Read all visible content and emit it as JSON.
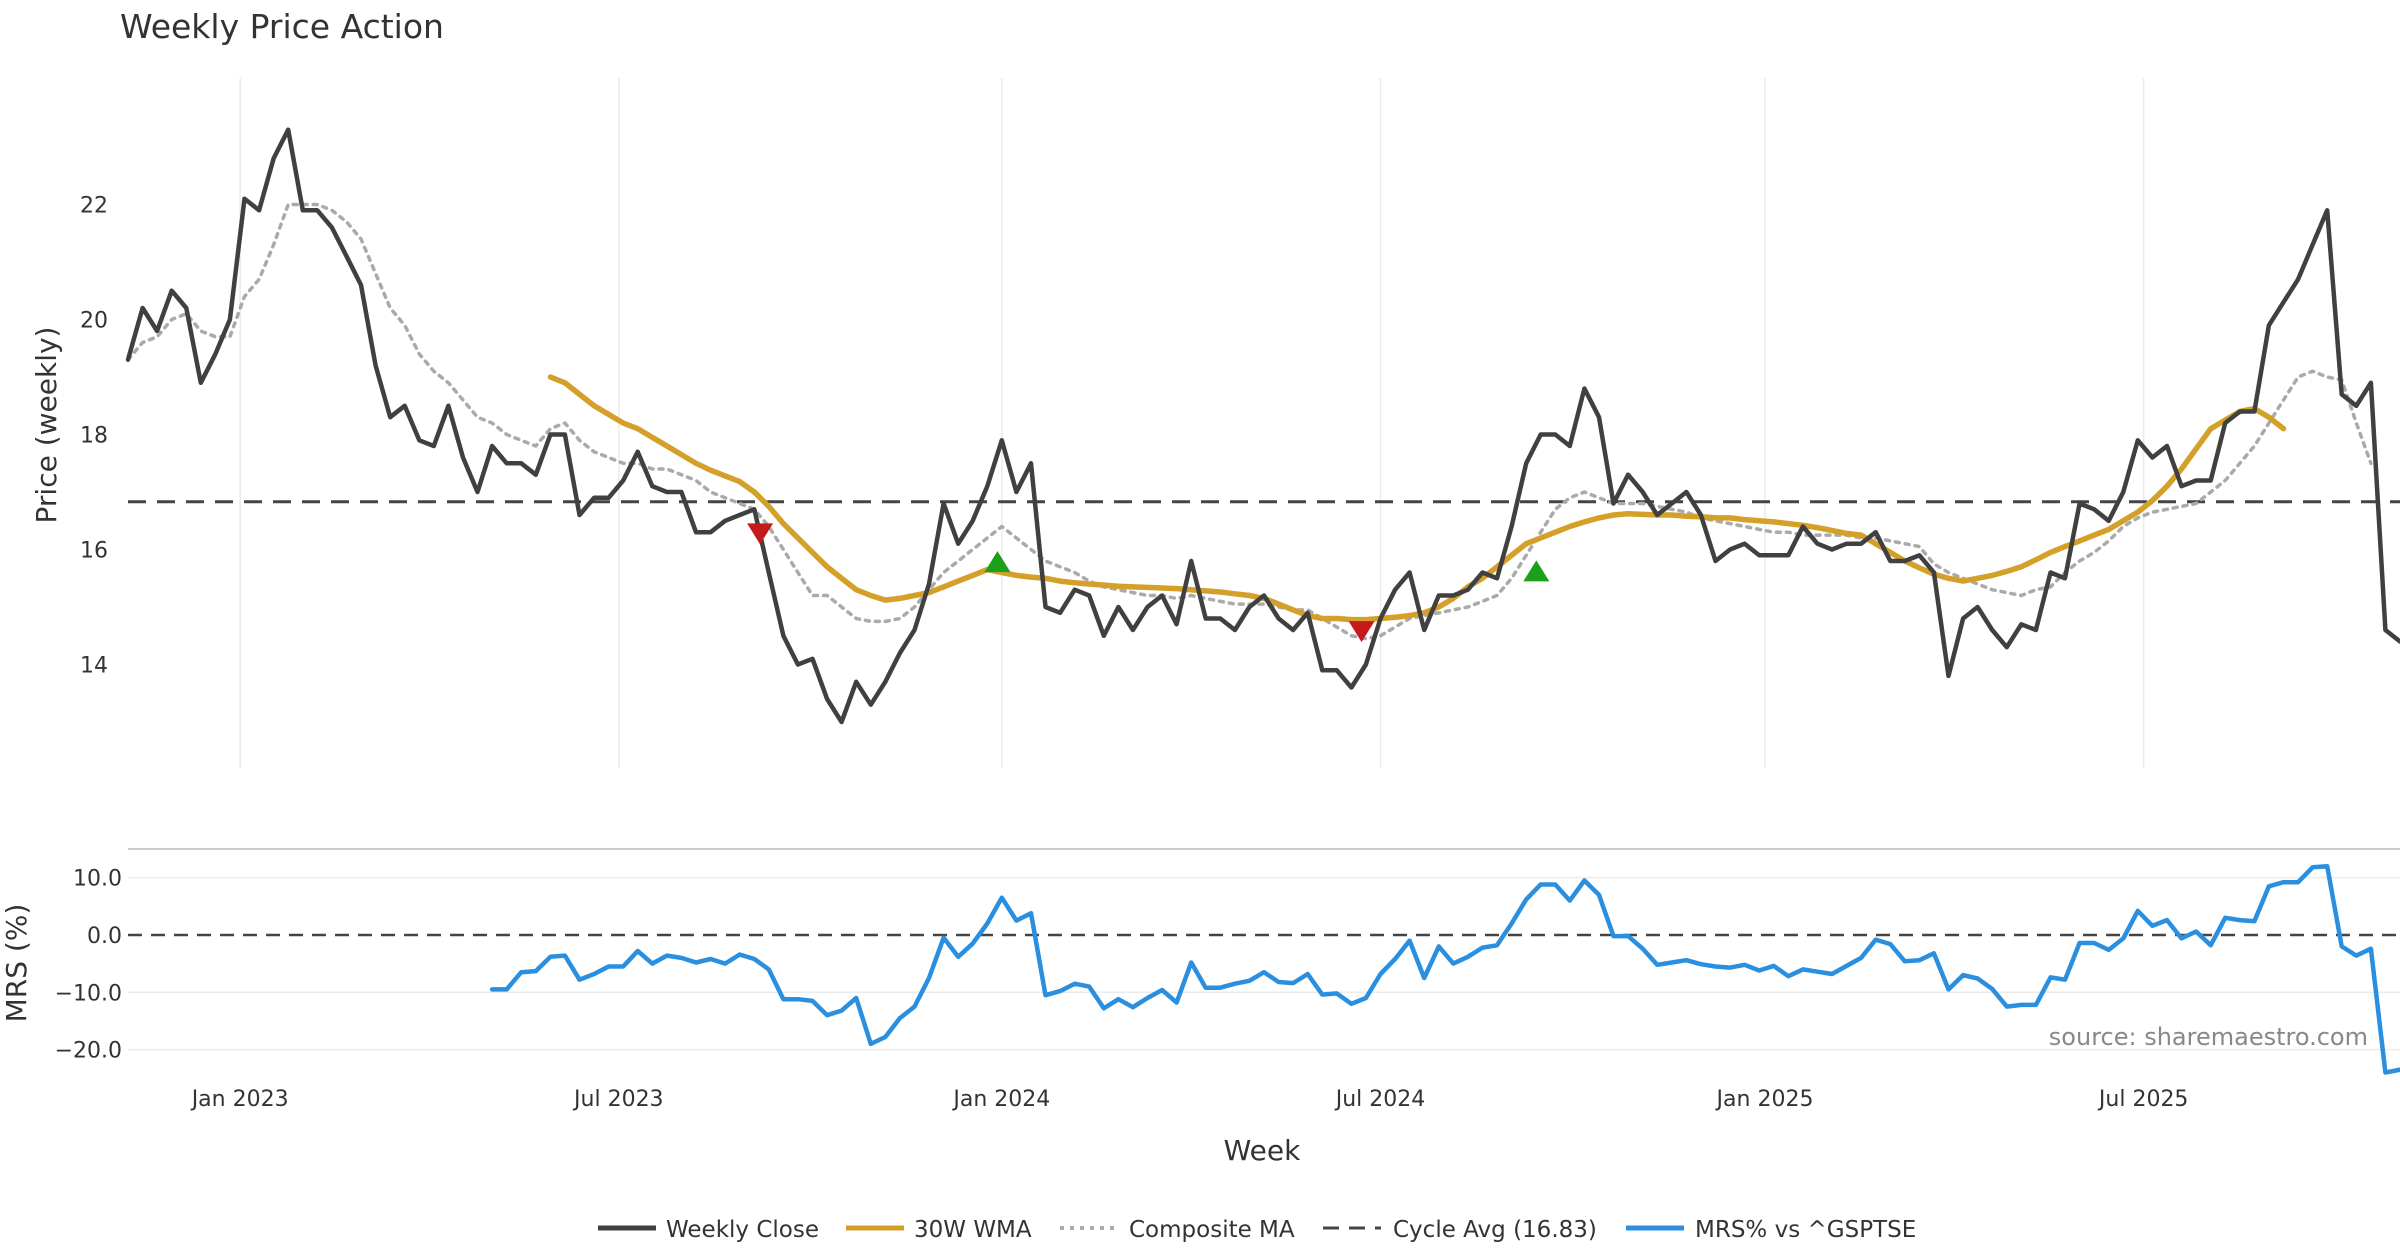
{
  "chart_data": {
    "type": "line",
    "title": "Weekly Price Action",
    "xlabel": "Week",
    "colors": {
      "close": "#404040",
      "wma": "#d4a02a",
      "composite": "#aaaaaa",
      "cycle": "#444444",
      "mrs": "#2b8fe0",
      "up_marker": "#1aa01a",
      "down_marker": "#c41a1a",
      "grid": "#ebebeb"
    },
    "x_ticks": [
      "Jan 2023",
      "Jul 2023",
      "Jan 2024",
      "Jul 2024",
      "Jan 2025",
      "Jul 2025"
    ],
    "x_tick_weeks": [
      11.7,
      37.7,
      64,
      90,
      116.4,
      142.4
    ],
    "x_range": [
      4,
      160
    ],
    "price_panel": {
      "ylabel": "Price (weekly)",
      "ylim": [
        12.2,
        24.2
      ],
      "y_ticks": [
        "14",
        "16",
        "18",
        "20",
        "22"
      ],
      "y_tick_values": [
        14,
        16,
        18,
        20,
        22
      ],
      "series": [
        {
          "name": "Weekly Close",
          "start_week": 4,
          "values": [
            19.3,
            20.2,
            19.8,
            20.5,
            20.2,
            18.9,
            19.4,
            20.0,
            22.1,
            21.9,
            22.8,
            23.3,
            21.9,
            21.9,
            21.6,
            21.1,
            20.6,
            19.2,
            18.3,
            18.5,
            17.9,
            17.8,
            18.5,
            17.6,
            17.0,
            17.8,
            17.5,
            17.5,
            17.3,
            18.0,
            18.0,
            16.6,
            16.9,
            16.9,
            17.2,
            17.7,
            17.1,
            17.0,
            17.0,
            16.3,
            16.3,
            16.5,
            16.6,
            16.7,
            15.6,
            14.5,
            14.0,
            14.1,
            13.4,
            13.0,
            13.7,
            13.3,
            13.7,
            14.2,
            14.6,
            15.4,
            16.8,
            16.1,
            16.5,
            17.1,
            17.9,
            17.0,
            17.5,
            15.0,
            14.9,
            15.3,
            15.2,
            14.5,
            15.0,
            14.6,
            15.0,
            15.2,
            14.7,
            15.8,
            14.8,
            14.8,
            14.6,
            15.0,
            15.2,
            14.8,
            14.6,
            14.9,
            13.9,
            13.9,
            13.6,
            14.0,
            14.8,
            15.3,
            15.6,
            14.6,
            15.2,
            15.2,
            15.3,
            15.6,
            15.5,
            16.4,
            17.5,
            18.0,
            18.0,
            17.8,
            18.8,
            18.3,
            16.8,
            17.3,
            17.0,
            16.6,
            16.8,
            17.0,
            16.6,
            15.8,
            16.0,
            16.1,
            15.9,
            15.9,
            15.9,
            16.4,
            16.1,
            16.0,
            16.1,
            16.1,
            16.3,
            15.8,
            15.8,
            15.9,
            15.6,
            13.8,
            14.8,
            15.0,
            14.6,
            14.3,
            14.7,
            14.6,
            15.6,
            15.5,
            16.8,
            16.7,
            16.5,
            17.0,
            17.9,
            17.6,
            17.8,
            17.1,
            17.2,
            17.2,
            18.2,
            18.4,
            18.4,
            19.9,
            20.3,
            20.7,
            21.3,
            21.9,
            18.7,
            18.5,
            18.9,
            14.6,
            14.4
          ]
        },
        {
          "name": "30W WMA",
          "start_week": 33,
          "values": [
            19.0,
            18.9,
            18.7,
            18.5,
            18.35,
            18.2,
            18.1,
            17.95,
            17.8,
            17.65,
            17.5,
            17.38,
            17.28,
            17.18,
            17.0,
            16.75,
            16.45,
            16.2,
            15.95,
            15.7,
            15.5,
            15.3,
            15.2,
            15.12,
            15.15,
            15.2,
            15.25,
            15.35,
            15.45,
            15.55,
            15.65,
            15.6,
            15.55,
            15.52,
            15.5,
            15.45,
            15.42,
            15.4,
            15.38,
            15.36,
            15.35,
            15.34,
            15.33,
            15.32,
            15.3,
            15.28,
            15.26,
            15.23,
            15.2,
            15.15,
            15.05,
            14.95,
            14.85,
            14.8,
            14.8,
            14.78,
            14.78,
            14.8,
            14.82,
            14.85,
            14.9,
            15.0,
            15.15,
            15.35,
            15.5,
            15.7,
            15.9,
            16.1,
            16.2,
            16.3,
            16.4,
            16.48,
            16.55,
            16.6,
            16.62,
            16.61,
            16.6,
            16.6,
            16.58,
            16.57,
            16.55,
            16.55,
            16.52,
            16.5,
            16.48,
            16.45,
            16.42,
            16.38,
            16.33,
            16.28,
            16.25,
            16.1,
            15.95,
            15.8,
            15.68,
            15.57,
            15.5,
            15.45,
            15.5,
            15.55,
            15.62,
            15.7,
            15.82,
            15.95,
            16.05,
            16.15,
            16.25,
            16.35,
            16.5,
            16.65,
            16.85,
            17.1,
            17.4,
            17.75,
            18.1,
            18.25,
            18.4,
            18.45,
            18.3,
            18.1
          ]
        },
        {
          "name": "Composite MA",
          "start_week": 4,
          "values": [
            19.3,
            19.6,
            19.7,
            20.0,
            20.1,
            19.8,
            19.7,
            19.7,
            20.4,
            20.7,
            21.3,
            22.0,
            22.0,
            22.0,
            21.9,
            21.7,
            21.4,
            20.8,
            20.2,
            19.9,
            19.4,
            19.1,
            18.9,
            18.6,
            18.3,
            18.2,
            18.0,
            17.9,
            17.8,
            18.1,
            18.2,
            17.9,
            17.7,
            17.6,
            17.5,
            17.5,
            17.4,
            17.4,
            17.3,
            17.2,
            17.0,
            16.9,
            16.8,
            16.7,
            16.4,
            16.0,
            15.6,
            15.2,
            15.2,
            15.0,
            14.8,
            14.75,
            14.75,
            14.8,
            15.0,
            15.3,
            15.6,
            15.8,
            16.0,
            16.2,
            16.4,
            16.2,
            16.0,
            15.8,
            15.7,
            15.6,
            15.45,
            15.35,
            15.3,
            15.25,
            15.2,
            15.2,
            15.15,
            15.2,
            15.15,
            15.1,
            15.05,
            15.05,
            15.05,
            15.0,
            14.95,
            14.95,
            14.8,
            14.65,
            14.5,
            14.45,
            14.5,
            14.65,
            14.8,
            14.85,
            14.9,
            14.95,
            15.0,
            15.1,
            15.2,
            15.5,
            15.9,
            16.3,
            16.7,
            16.9,
            17.0,
            16.9,
            16.8,
            16.8,
            16.8,
            16.75,
            16.7,
            16.65,
            16.55,
            16.5,
            16.45,
            16.4,
            16.35,
            16.3,
            16.3,
            16.25,
            16.25,
            16.25,
            16.25,
            16.2,
            16.2,
            16.15,
            16.1,
            16.05,
            15.75,
            15.6,
            15.5,
            15.4,
            15.3,
            15.25,
            15.2,
            15.3,
            15.35,
            15.6,
            15.8,
            15.95,
            16.15,
            16.4,
            16.55,
            16.65,
            16.7,
            16.75,
            16.8,
            17.0,
            17.2,
            17.5,
            17.8,
            18.2,
            18.6,
            19.0,
            19.1,
            19.0,
            18.95,
            18.2,
            17.5
          ]
        }
      ],
      "cycle_avg": 16.83,
      "up_markers": [
        [
          63.7,
          15.78
        ],
        [
          100.7,
          15.62
        ]
      ],
      "down_markers": [
        [
          47.4,
          16.28
        ],
        [
          88.7,
          14.58
        ]
      ]
    },
    "mrs_panel": {
      "ylabel": "MRS (%)",
      "ylim": [
        -26,
        15
      ],
      "y_ticks": [
        "10.0",
        "0.0",
        "−10.0",
        "−20.0"
      ],
      "y_tick_values": [
        10,
        0,
        -10,
        -20
      ],
      "series": [
        {
          "name": "MRS% vs ^GSPTSE",
          "start_week": 29,
          "values": [
            -9.5,
            -9.5,
            -6.5,
            -6.3,
            -3.8,
            -3.6,
            -7.8,
            -6.8,
            -5.5,
            -5.5,
            -2.8,
            -5.0,
            -3.6,
            -4.0,
            -4.8,
            -4.2,
            -5.0,
            -3.4,
            -4.2,
            -6.0,
            -11.2,
            -11.2,
            -11.5,
            -14.0,
            -13.2,
            -11.0,
            -19.0,
            -17.8,
            -14.5,
            -12.5,
            -7.5,
            -0.5,
            -3.8,
            -1.5,
            2.0,
            6.5,
            2.5,
            3.8,
            -10.5,
            -9.8,
            -8.5,
            -9.0,
            -12.8,
            -11.2,
            -12.6,
            -11.0,
            -9.6,
            -11.8,
            -4.8,
            -9.2,
            -9.2,
            -8.5,
            -8.0,
            -6.5,
            -8.2,
            -8.4,
            -6.8,
            -10.4,
            -10.2,
            -12.0,
            -11.0,
            -6.8,
            -4.2,
            -1.0,
            -7.5,
            -2.0,
            -5.0,
            -3.8,
            -2.2,
            -1.8,
            2.0,
            6.2,
            8.8,
            8.8,
            6.0,
            9.5,
            7.0,
            -0.2,
            -0.2,
            -2.4,
            -5.2,
            -4.8,
            -4.4,
            -5.1,
            -5.5,
            -5.7,
            -5.2,
            -6.2,
            -5.4,
            -7.2,
            -6.0,
            -6.4,
            -6.8,
            -5.4,
            -4.0,
            -0.8,
            -1.6,
            -4.6,
            -4.4,
            -3.2,
            -9.5,
            -7.0,
            -7.6,
            -9.4,
            -12.5,
            -12.2,
            -12.2,
            -7.4,
            -7.8,
            -1.4,
            -1.4,
            -2.6,
            -0.6,
            4.2,
            1.6,
            2.6,
            -0.6,
            0.6,
            -1.8,
            3.0,
            2.6,
            2.4,
            8.5,
            9.2,
            9.2,
            11.8,
            12.0,
            -2.0,
            -3.6,
            -2.4,
            -24.0,
            -23.5
          ]
        }
      ]
    },
    "legend": [
      "Weekly Close",
      "30W WMA",
      "Composite MA",
      "Cycle Avg (16.83)",
      "MRS% vs ^GSPTSE"
    ],
    "legend_position": "bottom-center",
    "source": "source: sharemaestro.com"
  }
}
